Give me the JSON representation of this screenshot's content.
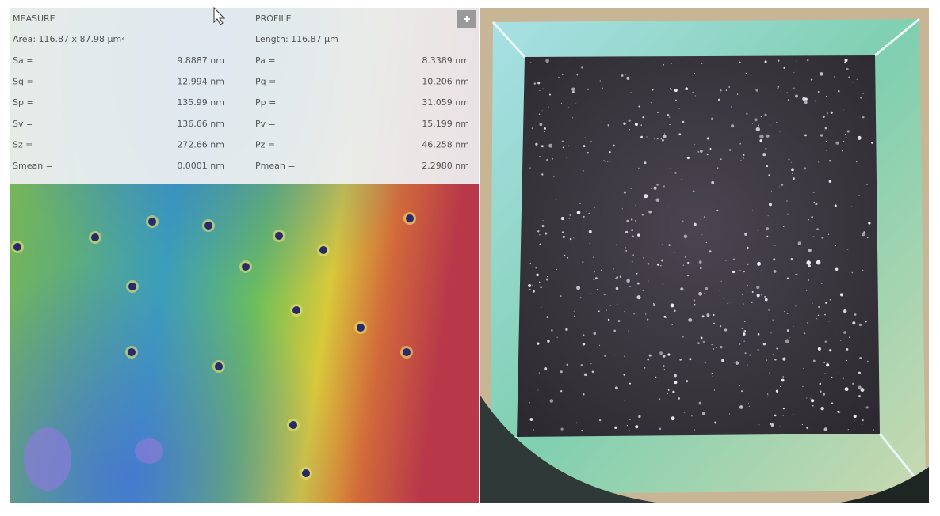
{
  "measure": {
    "title": "MEASURE",
    "area": "Area: 116.87 x 87.98 µm²",
    "rows": [
      [
        "Sa =",
        "9.8887 nm"
      ],
      [
        "Sq =",
        "12.994 nm"
      ],
      [
        "Sp =",
        "135.99 nm"
      ],
      [
        "Sv =",
        "136.66 nm"
      ],
      [
        "Sz =",
        "272.66 nm"
      ],
      [
        "Smean =",
        "0.0001 nm"
      ]
    ]
  },
  "profile": {
    "title": "PROFILE",
    "length": "Length: 116.87 µm",
    "rows": [
      [
        "Pa =",
        "8.3389 nm"
      ],
      [
        "Pq =",
        "10.206 nm"
      ],
      [
        "Pp =",
        "31.059 nm"
      ],
      [
        "Pv =",
        "15.199 nm"
      ],
      [
        "Pz =",
        "46.258 nm"
      ],
      [
        "Pmean =",
        "2.2980 nm"
      ]
    ]
  }
}
